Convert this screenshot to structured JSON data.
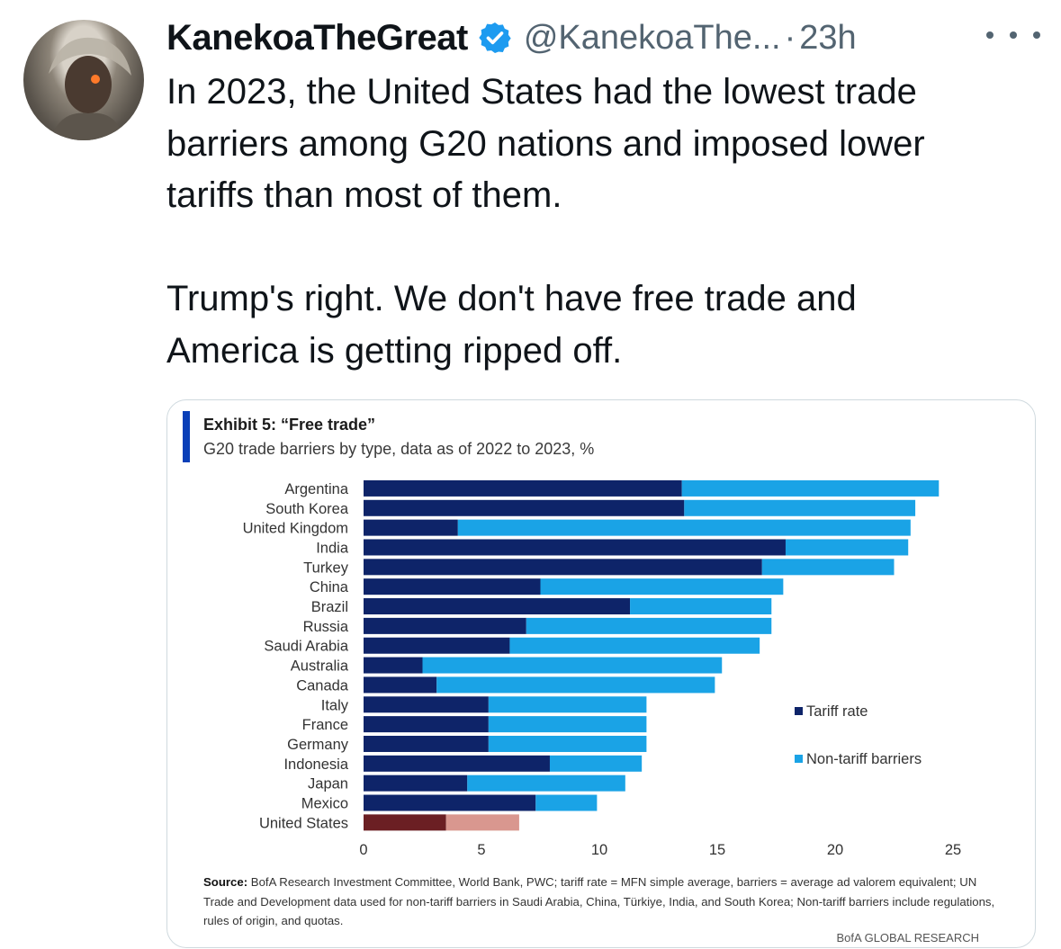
{
  "tweet": {
    "author_name": "KanekoaTheGreat",
    "handle": "@KanekoaThe...",
    "separator": "·",
    "time": "23h",
    "text_lines": [
      "In 2023, the United States had the lowest trade",
      "barriers among G20 nations and imposed lower",
      "tariffs than most of them.",
      "Trump's right. We don't have free trade and",
      "America is getting ripped off."
    ],
    "icons": {
      "verified": "verified-badge-icon",
      "more": "more-options-icon",
      "avatar": "avatar"
    },
    "colors": {
      "verified": "#1d9bf0",
      "secondary_text": "#536471"
    }
  },
  "exhibit": {
    "title": "Exhibit 5: “Free trade”",
    "subtitle": "G20 trade barriers by type, data as of 2022 to 2023, %",
    "source_label": "Source:",
    "source_text": "BofA Research Investment Committee, World Bank, PWC; tariff rate = MFN simple average, barriers = average ad valorem equivalent; UN Trade and Development data used for non-tariff barriers in Saudi Arabia, China, Türkiye, India, and South Korea; Non-tariff barriers include regulations, rules of origin, and quotas.",
    "brand": "BofA GLOBAL RESEARCH"
  },
  "chart_data": {
    "type": "bar",
    "orientation": "horizontal",
    "stacked": true,
    "title": "Exhibit 5: “Free trade”",
    "subtitle": "G20 trade barriers by type, data as of 2022 to 2023, %",
    "categories": [
      "Argentina",
      "South Korea",
      "United Kingdom",
      "India",
      "Turkey",
      "China",
      "Brazil",
      "Russia",
      "Saudi Arabia",
      "Australia",
      "Canada",
      "Italy",
      "France",
      "Germany",
      "Indonesia",
      "Japan",
      "Mexico",
      "United States"
    ],
    "series": [
      {
        "name": "Tariff rate",
        "color": "#0e2469",
        "values": [
          13.5,
          13.6,
          4.0,
          17.9,
          16.9,
          7.5,
          11.3,
          6.9,
          6.2,
          2.5,
          3.1,
          5.3,
          5.3,
          5.3,
          7.9,
          4.4,
          7.3,
          3.5
        ]
      },
      {
        "name": "Non-tariff barriers",
        "color": "#1aa3e6",
        "values": [
          10.9,
          9.8,
          19.2,
          5.2,
          5.6,
          10.3,
          6.0,
          10.4,
          10.6,
          12.7,
          11.8,
          6.7,
          6.7,
          6.7,
          3.9,
          6.7,
          2.6,
          3.1
        ]
      }
    ],
    "highlight": {
      "category": "United States",
      "colors": [
        "#6b1f23",
        "#d9978f"
      ]
    },
    "xlim": [
      0,
      25
    ],
    "xticks": [
      0,
      5,
      10,
      15,
      20,
      25
    ],
    "legend": "right",
    "grid": false
  }
}
